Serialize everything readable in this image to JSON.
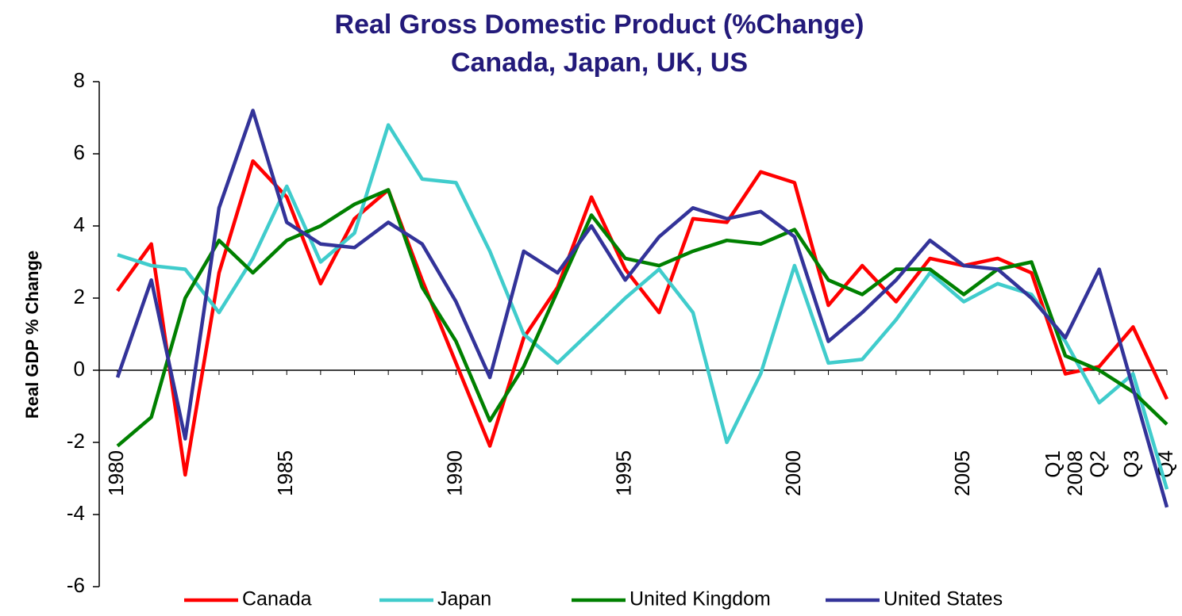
{
  "chart_data": {
    "type": "line",
    "title": "Real Gross Domestic Product (%Change)",
    "subtitle": "Canada, Japan, UK, US",
    "y_label": "Real GDP % Change",
    "categories": [
      "1980",
      null,
      null,
      null,
      null,
      "1985",
      null,
      null,
      null,
      null,
      "1990",
      null,
      null,
      null,
      null,
      "1995",
      null,
      null,
      null,
      null,
      "2000",
      null,
      null,
      null,
      null,
      "2005",
      null,
      null,
      "Q1 2008",
      "Q2",
      "Q3",
      "Q4"
    ],
    "series": [
      {
        "name": "Canada",
        "color": "#ff0000",
        "values": [
          2.2,
          3.5,
          -2.9,
          2.7,
          5.8,
          4.8,
          2.4,
          4.2,
          5.0,
          2.5,
          0.2,
          -2.1,
          0.9,
          2.3,
          4.8,
          2.8,
          1.6,
          4.2,
          4.1,
          5.5,
          5.2,
          1.8,
          2.9,
          1.9,
          3.1,
          2.9,
          3.1,
          2.7,
          -0.1,
          0.1,
          1.2,
          -0.8
        ]
      },
      {
        "name": "Japan",
        "color": "#40cccc",
        "values": [
          3.2,
          2.9,
          2.8,
          1.6,
          3.1,
          5.1,
          3.0,
          3.8,
          6.8,
          5.3,
          5.2,
          3.3,
          1.0,
          0.2,
          1.1,
          2.0,
          2.8,
          1.6,
          -2.0,
          -0.1,
          2.9,
          0.2,
          0.3,
          1.4,
          2.7,
          1.9,
          2.4,
          2.1,
          0.8,
          -0.9,
          -0.1,
          -3.3
        ]
      },
      {
        "name": "United Kingdom",
        "color": "#008000",
        "values": [
          -2.1,
          -1.3,
          2.0,
          3.6,
          2.7,
          3.6,
          4.0,
          4.6,
          5.0,
          2.3,
          0.8,
          -1.4,
          0.1,
          2.2,
          4.3,
          3.1,
          2.9,
          3.3,
          3.6,
          3.5,
          3.9,
          2.5,
          2.1,
          2.8,
          2.8,
          2.1,
          2.8,
          3.0,
          0.4,
          0.0,
          -0.6,
          -1.5
        ]
      },
      {
        "name": "United States",
        "color": "#333399",
        "values": [
          -0.2,
          2.5,
          -1.9,
          4.5,
          7.2,
          4.1,
          3.5,
          3.4,
          4.1,
          3.5,
          1.9,
          -0.2,
          3.3,
          2.7,
          4.0,
          2.5,
          3.7,
          4.5,
          4.2,
          4.4,
          3.7,
          0.8,
          1.6,
          2.5,
          3.6,
          2.9,
          2.8,
          2.0,
          0.9,
          2.8,
          -0.5,
          -3.8
        ]
      }
    ],
    "ylim": [
      -6,
      8
    ],
    "yticks": [
      -6,
      -4,
      -2,
      0,
      2,
      4,
      6,
      8
    ],
    "legend": "bottom"
  }
}
